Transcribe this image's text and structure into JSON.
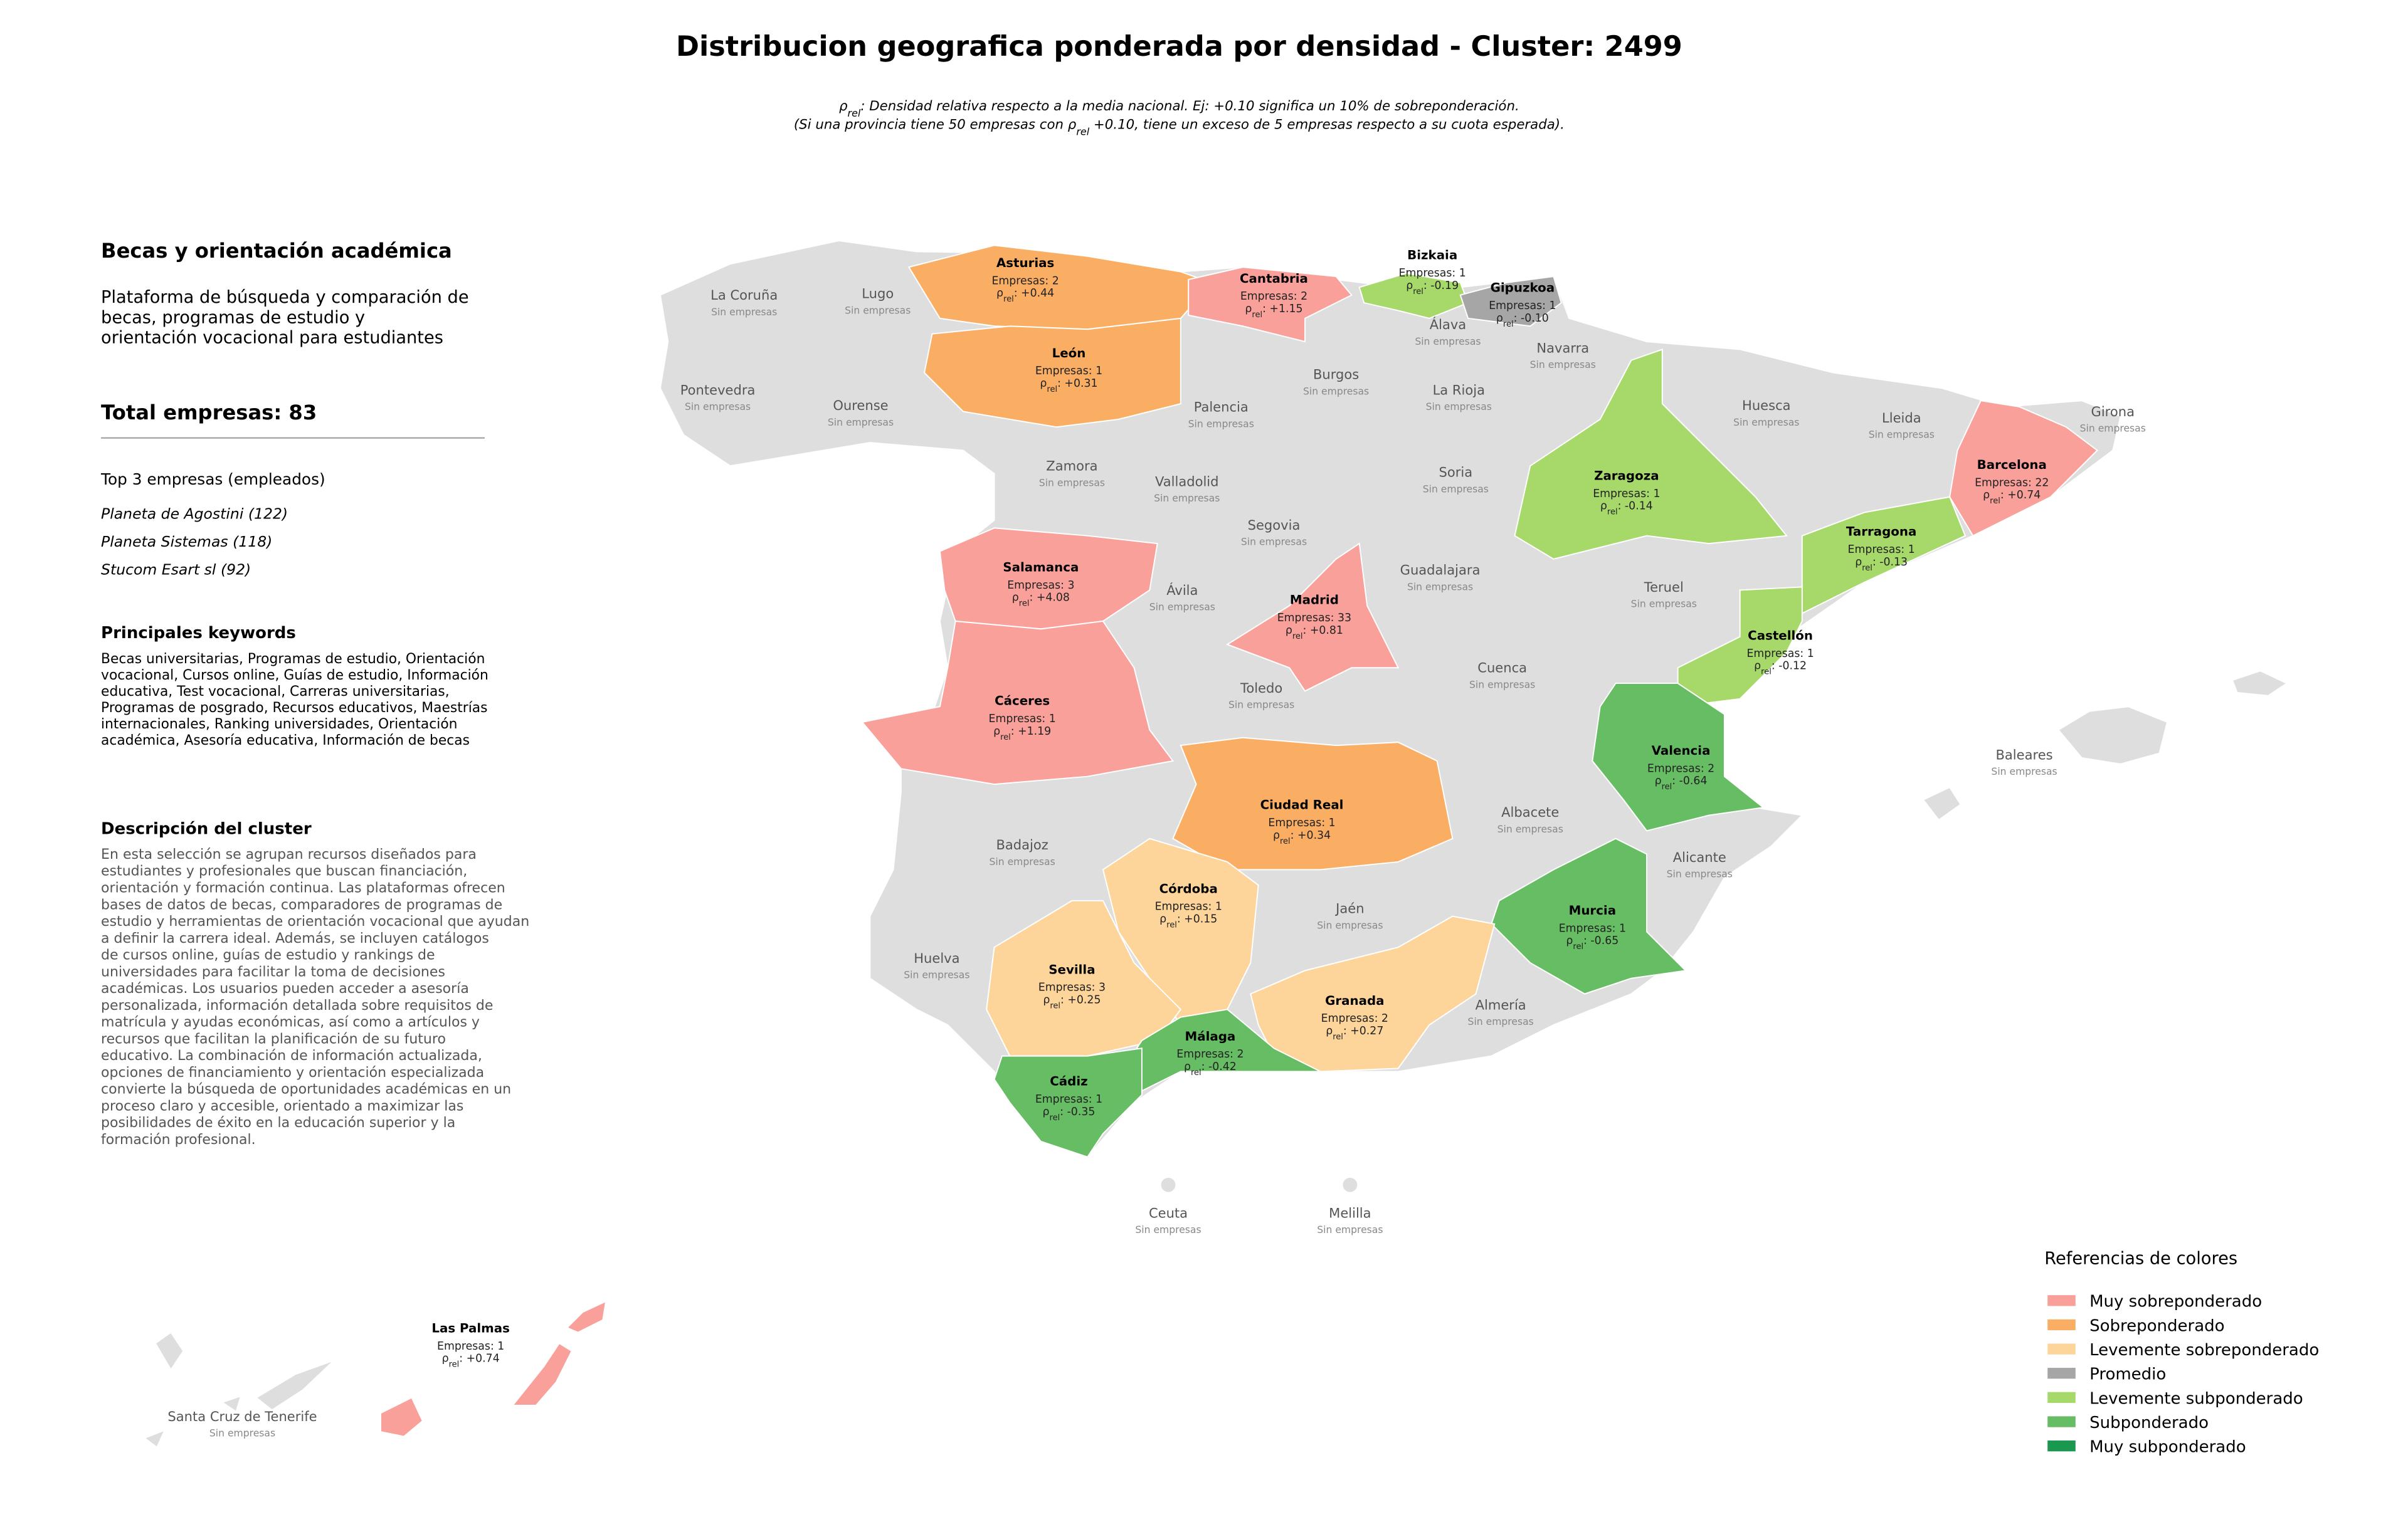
{
  "title": "Distribucion geografica ponderada por densidad - Cluster: 2499",
  "note": {
    "line1": [
      {
        "text": "ρ"
      },
      {
        "text": "rel",
        "sub": true
      },
      {
        "text": ": Densidad relativa respecto a la media nacional. Ej: +0.10 significa un 10% de sobreponderación."
      }
    ],
    "line2": [
      {
        "text": "(Si una provincia tiene 50 empresas con "
      },
      {
        "text": "ρ"
      },
      {
        "text": "rel",
        "sub": true
      },
      {
        "text": " +0.10, tiene un exceso de 5 empresas respecto a su cuota esperada)."
      }
    ]
  },
  "panel": {
    "title": "Becas y orientación académica",
    "summary": [
      "Plataforma de búsqueda y comparación de",
      "becas, programas de estudio y",
      "orientación vocacional para estudiantes"
    ],
    "total": "Total empresas: 83",
    "top_title": "Top 3 empresas (empleados)",
    "top": [
      "Planeta de Agostini (122)",
      "Planeta Sistemas (118)",
      "Stucom Esart sl (92)"
    ],
    "keywords_title": "Principales keywords",
    "keywords": [
      "Becas universitarias, Programas de estudio, Orientación",
      "vocacional, Cursos online, Guías de estudio, Información",
      "educativa, Test vocacional, Carreras universitarias,",
      "Programas de posgrado, Recursos educativos, Maestrías",
      "internacionales, Ranking universidades, Orientación",
      "académica, Asesoría educativa, Información de becas"
    ],
    "description_title": "Descripción del cluster",
    "description": [
      "En esta selección se agrupan recursos diseñados para",
      "estudiantes y profesionales que buscan financiación,",
      "orientación y formación continua. Las plataformas ofrecen",
      "bases de datos de becas, comparadores de programas de",
      "estudio y herramientas de orientación vocacional que ayudan",
      "a definir la carrera ideal. Además, se incluyen catálogos",
      "de cursos online, guías de estudio y rankings de",
      "universidades para facilitar la toma de decisiones",
      "académicas. Los usuarios pueden acceder a asesoría",
      "personalizada, información detallada sobre requisitos de",
      "matrícula y ayudas económicas, así como a artículos y",
      "recursos que facilitan la planificación de su futuro",
      "educativo. La combinación de información actualizada,",
      "opciones de financiamiento y orientación especializada",
      "convierte la búsqueda de oportunidades académicas en un",
      "proceso claro y accesible, orientado a maximizar las",
      "posibilidades de éxito en la educación superior y la",
      "formación profesional."
    ]
  },
  "density_prefix": [
    {
      "text": "ρ"
    },
    {
      "text": "rel",
      "sub": true
    },
    {
      "text": ": "
    }
  ],
  "no_data_label": "Sin empresas",
  "provinces": [
    {
      "name": "Asturias",
      "companies": "Empresas: 2",
      "density": "+0.44",
      "color": "#f9ae64"
    },
    {
      "name": "Cantabria",
      "companies": "Empresas: 2",
      "density": "+1.15",
      "color": "#f9a09a"
    },
    {
      "name": "Bizkaia",
      "companies": "Empresas: 1",
      "density": "-0.19",
      "color": "#a6d96a"
    },
    {
      "name": "Gipuzkoa",
      "companies": "Empresas: 1",
      "density": "-0.10",
      "color": "#a6a6a6"
    },
    {
      "name": "León",
      "companies": "Empresas: 1",
      "density": "+0.31",
      "color": "#f9ae64"
    },
    {
      "name": "Barcelona",
      "companies": "Empresas: 22",
      "density": "+0.74",
      "color": "#f9a09a"
    },
    {
      "name": "Zaragoza",
      "companies": "Empresas: 1",
      "density": "-0.14",
      "color": "#a6d96a"
    },
    {
      "name": "Tarragona",
      "companies": "Empresas: 1",
      "density": "-0.13",
      "color": "#a6d96a"
    },
    {
      "name": "Salamanca",
      "companies": "Empresas: 3",
      "density": "+4.08",
      "color": "#f9a09a"
    },
    {
      "name": "Madrid",
      "companies": "Empresas: 33",
      "density": "+0.81",
      "color": "#f9a09a"
    },
    {
      "name": "Castellón",
      "companies": "Empresas: 1",
      "density": "-0.12",
      "color": "#a6d96a"
    },
    {
      "name": "Cáceres",
      "companies": "Empresas: 1",
      "density": "+1.19",
      "color": "#f9a09a"
    },
    {
      "name": "Valencia",
      "companies": "Empresas: 2",
      "density": "-0.64",
      "color": "#66bd63"
    },
    {
      "name": "Ciudad Real",
      "companies": "Empresas: 1",
      "density": "+0.34",
      "color": "#f9ae64"
    },
    {
      "name": "Córdoba",
      "companies": "Empresas: 1",
      "density": "+0.15",
      "color": "#fdd59a"
    },
    {
      "name": "Murcia",
      "companies": "Empresas: 1",
      "density": "-0.65",
      "color": "#66bd63"
    },
    {
      "name": "Sevilla",
      "companies": "Empresas: 3",
      "density": "+0.25",
      "color": "#fdd59a"
    },
    {
      "name": "Granada",
      "companies": "Empresas: 2",
      "density": "+0.27",
      "color": "#fdd59a"
    },
    {
      "name": "Málaga",
      "companies": "Empresas: 2",
      "density": "-0.42",
      "color": "#66bd63"
    },
    {
      "name": "Cádiz",
      "companies": "Empresas: 1",
      "density": "-0.35",
      "color": "#66bd63"
    },
    {
      "name": "Las Palmas",
      "companies": "Empresas: 1",
      "density": "+0.74",
      "color": "#f9a09a"
    }
  ],
  "empty_provinces": [
    "La Coruña",
    "Lugo",
    "Pontevedra",
    "Ourense",
    "Zamora",
    "Palencia",
    "Burgos",
    "Álava",
    "Navarra",
    "La Rioja",
    "Huesca",
    "Lleida",
    "Girona",
    "Valladolid",
    "Soria",
    "Segovia",
    "Guadalajara",
    "Teruel",
    "Ávila",
    "Cuenca",
    "Toledo",
    "Baleares",
    "Albacete",
    "Badajoz",
    "Alicante",
    "Jaén",
    "Huelva",
    "Almería",
    "Ceuta",
    "Melilla",
    "Santa Cruz de Tenerife"
  ],
  "legend": {
    "title": "Referencias de colores",
    "items": [
      {
        "label": "Muy sobreponderado",
        "color": "#f9a09a"
      },
      {
        "label": "Sobreponderado",
        "color": "#f9ae64"
      },
      {
        "label": "Levemente sobreponderado",
        "color": "#fdd59a"
      },
      {
        "label": "Promedio",
        "color": "#a6a6a6"
      },
      {
        "label": "Levemente subponderado",
        "color": "#a6d96a"
      },
      {
        "label": "Subponderado",
        "color": "#66bd63"
      },
      {
        "label": "Muy subponderado",
        "color": "#1a9850"
      }
    ]
  }
}
